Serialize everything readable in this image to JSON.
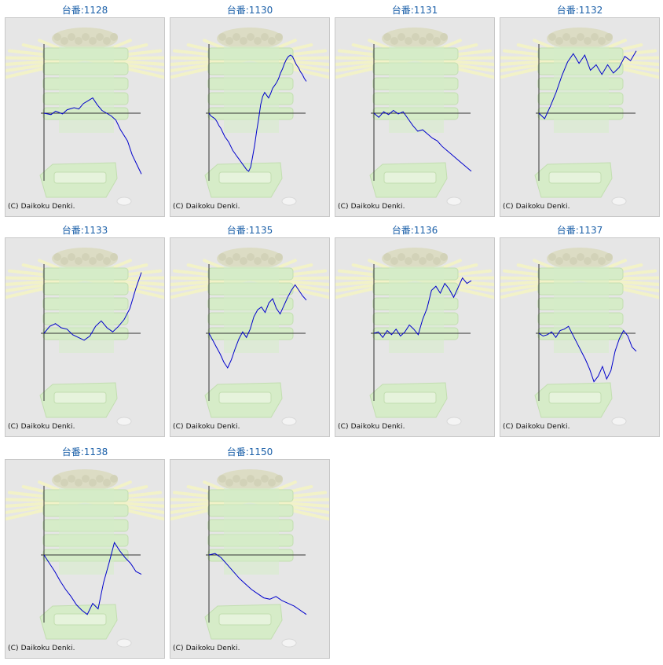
{
  "copyright": "(C) Daikoku Denki.",
  "colors": {
    "title": "#1a5fa8",
    "line": "#0000cc",
    "axis": "#333333",
    "panel_bg": "#e6e6e6",
    "ray": "#f2f2c8",
    "machine": "#d6ecc8"
  },
  "chart_data": [
    {
      "type": "line",
      "title": "台番:1128",
      "points": [
        [
          0,
          0
        ],
        [
          3,
          -2
        ],
        [
          5,
          3
        ],
        [
          8,
          -1
        ],
        [
          10,
          5
        ],
        [
          13,
          8
        ],
        [
          15,
          6
        ],
        [
          17,
          14
        ],
        [
          19,
          18
        ],
        [
          21,
          22
        ],
        [
          23,
          12
        ],
        [
          25,
          4
        ],
        [
          27,
          0
        ],
        [
          29,
          -4
        ],
        [
          31,
          -10
        ],
        [
          33,
          -24
        ],
        [
          36,
          -40
        ],
        [
          38,
          -60
        ],
        [
          40,
          -74
        ],
        [
          42,
          -88
        ]
      ]
    },
    {
      "type": "line",
      "title": "台番:1130",
      "points": [
        [
          0,
          0
        ],
        [
          5,
          -4
        ],
        [
          10,
          -6
        ],
        [
          15,
          -8
        ],
        [
          20,
          -12
        ],
        [
          25,
          -18
        ],
        [
          30,
          -22
        ],
        [
          35,
          -28
        ],
        [
          40,
          -34
        ],
        [
          45,
          -38
        ],
        [
          50,
          -42
        ],
        [
          55,
          -48
        ],
        [
          60,
          -54
        ],
        [
          65,
          -58
        ],
        [
          70,
          -62
        ],
        [
          75,
          -66
        ],
        [
          80,
          -70
        ],
        [
          85,
          -74
        ],
        [
          90,
          -78
        ],
        [
          95,
          -82
        ],
        [
          100,
          -84
        ],
        [
          105,
          -78
        ],
        [
          110,
          -62
        ],
        [
          115,
          -46
        ],
        [
          120,
          -26
        ],
        [
          125,
          -8
        ],
        [
          130,
          12
        ],
        [
          135,
          24
        ],
        [
          140,
          30
        ],
        [
          145,
          26
        ],
        [
          150,
          22
        ],
        [
          155,
          28
        ],
        [
          160,
          36
        ],
        [
          165,
          40
        ],
        [
          170,
          44
        ],
        [
          175,
          50
        ],
        [
          180,
          58
        ],
        [
          185,
          64
        ],
        [
          190,
          72
        ],
        [
          195,
          78
        ],
        [
          200,
          82
        ],
        [
          205,
          84
        ],
        [
          210,
          82
        ],
        [
          215,
          76
        ],
        [
          220,
          70
        ],
        [
          225,
          66
        ],
        [
          230,
          60
        ],
        [
          235,
          56
        ],
        [
          240,
          50
        ],
        [
          245,
          46
        ]
      ],
      "_series_note": ""
    },
    {
      "type": "line",
      "title": "台番:1131",
      "points": [
        [
          0,
          0
        ],
        [
          10,
          -6
        ],
        [
          20,
          2
        ],
        [
          30,
          -2
        ],
        [
          40,
          4
        ],
        [
          50,
          -1
        ],
        [
          60,
          2
        ],
        [
          70,
          -8
        ],
        [
          80,
          -18
        ],
        [
          90,
          -26
        ],
        [
          100,
          -24
        ],
        [
          110,
          -30
        ],
        [
          120,
          -36
        ],
        [
          130,
          -40
        ],
        [
          140,
          -48
        ],
        [
          150,
          -54
        ],
        [
          160,
          -60
        ],
        [
          170,
          -66
        ],
        [
          180,
          -72
        ],
        [
          190,
          -78
        ],
        [
          200,
          -84
        ]
      ]
    },
    {
      "type": "line",
      "title": "台番:1132",
      "points": [
        [
          0,
          0
        ],
        [
          4,
          -8
        ],
        [
          8,
          10
        ],
        [
          12,
          30
        ],
        [
          16,
          54
        ],
        [
          20,
          74
        ],
        [
          24,
          86
        ],
        [
          28,
          72
        ],
        [
          32,
          84
        ],
        [
          36,
          62
        ],
        [
          40,
          70
        ],
        [
          44,
          56
        ],
        [
          48,
          70
        ],
        [
          52,
          58
        ],
        [
          56,
          66
        ],
        [
          60,
          82
        ],
        [
          64,
          76
        ],
        [
          68,
          90
        ]
      ]
    },
    {
      "type": "line",
      "title": "台番:1133",
      "points": [
        [
          0,
          0
        ],
        [
          3,
          10
        ],
        [
          6,
          14
        ],
        [
          9,
          8
        ],
        [
          12,
          6
        ],
        [
          15,
          -2
        ],
        [
          18,
          -6
        ],
        [
          21,
          -10
        ],
        [
          24,
          -4
        ],
        [
          27,
          10
        ],
        [
          30,
          18
        ],
        [
          33,
          8
        ],
        [
          36,
          2
        ],
        [
          39,
          10
        ],
        [
          42,
          20
        ],
        [
          45,
          36
        ],
        [
          48,
          64
        ],
        [
          51,
          88
        ]
      ]
    },
    {
      "type": "line",
      "title": "台番:1135",
      "points": [
        [
          0,
          0
        ],
        [
          5,
          -10
        ],
        [
          10,
          -20
        ],
        [
          15,
          -30
        ],
        [
          20,
          -42
        ],
        [
          25,
          -50
        ],
        [
          30,
          -38
        ],
        [
          35,
          -22
        ],
        [
          40,
          -8
        ],
        [
          45,
          2
        ],
        [
          50,
          -6
        ],
        [
          55,
          6
        ],
        [
          60,
          24
        ],
        [
          65,
          34
        ],
        [
          70,
          38
        ],
        [
          75,
          30
        ],
        [
          80,
          44
        ],
        [
          85,
          50
        ],
        [
          90,
          36
        ],
        [
          95,
          28
        ],
        [
          100,
          40
        ],
        [
          105,
          52
        ],
        [
          110,
          62
        ],
        [
          115,
          70
        ],
        [
          120,
          62
        ],
        [
          125,
          54
        ],
        [
          130,
          48
        ]
      ]
    },
    {
      "type": "line",
      "title": "台番:1136",
      "points": [
        [
          0,
          0
        ],
        [
          10,
          2
        ],
        [
          20,
          -6
        ],
        [
          30,
          4
        ],
        [
          40,
          -2
        ],
        [
          50,
          6
        ],
        [
          60,
          -4
        ],
        [
          70,
          2
        ],
        [
          80,
          12
        ],
        [
          90,
          6
        ],
        [
          100,
          -2
        ],
        [
          110,
          20
        ],
        [
          120,
          36
        ],
        [
          130,
          62
        ],
        [
          140,
          68
        ],
        [
          150,
          58
        ],
        [
          160,
          72
        ],
        [
          170,
          64
        ],
        [
          180,
          52
        ],
        [
          190,
          66
        ],
        [
          200,
          80
        ],
        [
          210,
          72
        ],
        [
          220,
          76
        ]
      ]
    },
    {
      "type": "line",
      "title": "台番:1137",
      "points": [
        [
          0,
          0
        ],
        [
          10,
          -4
        ],
        [
          20,
          -2
        ],
        [
          30,
          2
        ],
        [
          40,
          -6
        ],
        [
          50,
          4
        ],
        [
          60,
          6
        ],
        [
          70,
          10
        ],
        [
          80,
          -2
        ],
        [
          90,
          -14
        ],
        [
          100,
          -26
        ],
        [
          110,
          -38
        ],
        [
          120,
          -52
        ],
        [
          130,
          -70
        ],
        [
          140,
          -62
        ],
        [
          150,
          -48
        ],
        [
          160,
          -66
        ],
        [
          170,
          -54
        ],
        [
          180,
          -26
        ],
        [
          190,
          -8
        ],
        [
          200,
          4
        ],
        [
          210,
          -4
        ],
        [
          220,
          -20
        ],
        [
          230,
          -26
        ]
      ]
    },
    {
      "type": "line",
      "title": "台番:1138",
      "points": [
        [
          0,
          0
        ],
        [
          10,
          -12
        ],
        [
          20,
          -24
        ],
        [
          30,
          -38
        ],
        [
          40,
          -50
        ],
        [
          50,
          -60
        ],
        [
          60,
          -72
        ],
        [
          70,
          -80
        ],
        [
          80,
          -86
        ],
        [
          90,
          -70
        ],
        [
          100,
          -78
        ],
        [
          110,
          -40
        ],
        [
          120,
          -12
        ],
        [
          130,
          18
        ],
        [
          140,
          6
        ],
        [
          150,
          -4
        ],
        [
          160,
          -12
        ],
        [
          170,
          -24
        ],
        [
          180,
          -28
        ]
      ]
    },
    {
      "type": "line",
      "title": "台番:1150",
      "points": [
        [
          0,
          0
        ],
        [
          10,
          2
        ],
        [
          20,
          -4
        ],
        [
          30,
          -14
        ],
        [
          40,
          -24
        ],
        [
          50,
          -34
        ],
        [
          60,
          -42
        ],
        [
          70,
          -50
        ],
        [
          80,
          -56
        ],
        [
          90,
          -62
        ],
        [
          100,
          -64
        ],
        [
          110,
          -60
        ],
        [
          120,
          -66
        ],
        [
          130,
          -70
        ],
        [
          140,
          -74
        ],
        [
          150,
          -80
        ],
        [
          160,
          -86
        ]
      ]
    }
  ]
}
